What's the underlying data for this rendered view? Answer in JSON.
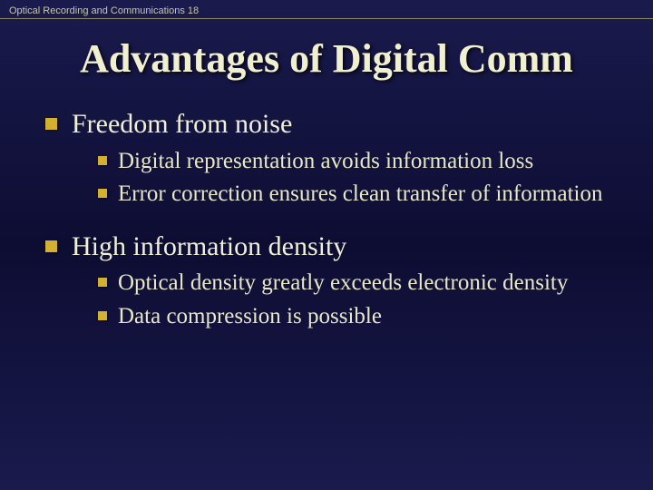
{
  "header": "Optical Recording and Communications 18",
  "title": "Advantages of Digital Comm",
  "colors": {
    "background_top": "#1a1a4d",
    "background_mid": "#0d0d33",
    "bullet": "#d4b030",
    "title_text": "#f0f0d0",
    "body_text": "#e8e8c8",
    "header_text": "#c8c8a8",
    "divider": "#888866"
  },
  "typography": {
    "title_fontsize": 44,
    "level1_fontsize": 30,
    "level2_fontsize": 25,
    "header_fontsize": 11,
    "title_family": "Times New Roman",
    "body_family": "Georgia",
    "header_family": "Arial"
  },
  "items": [
    {
      "text": "Freedom from noise",
      "sub": [
        {
          "text": "Digital representation avoids information loss"
        },
        {
          "text": "Error correction ensures clean transfer of information"
        }
      ]
    },
    {
      "text": "High information density",
      "sub": [
        {
          "text": "Optical density greatly exceeds electronic density"
        },
        {
          "text": "Data compression is possible"
        }
      ]
    }
  ]
}
